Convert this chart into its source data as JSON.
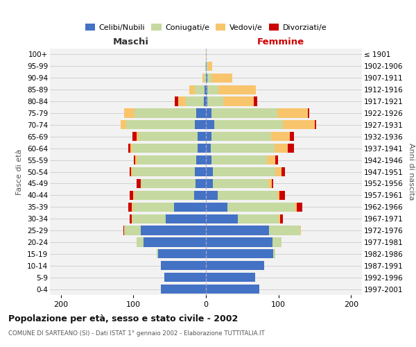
{
  "age_groups": [
    "0-4",
    "5-9",
    "10-14",
    "15-19",
    "20-24",
    "25-29",
    "30-34",
    "35-39",
    "40-44",
    "45-49",
    "50-54",
    "55-59",
    "60-64",
    "65-69",
    "70-74",
    "75-79",
    "80-84",
    "85-89",
    "90-94",
    "95-99",
    "100+"
  ],
  "birth_years": [
    "1997-2001",
    "1992-1996",
    "1987-1991",
    "1982-1986",
    "1977-1981",
    "1972-1976",
    "1967-1971",
    "1962-1966",
    "1957-1961",
    "1952-1956",
    "1947-1951",
    "1942-1946",
    "1937-1941",
    "1932-1936",
    "1927-1931",
    "1922-1926",
    "1917-1921",
    "1912-1916",
    "1907-1911",
    "1902-1906",
    "≤ 1901"
  ],
  "maschi": {
    "celibi": [
      62,
      57,
      62,
      66,
      86,
      90,
      55,
      44,
      16,
      14,
      15,
      13,
      11,
      11,
      15,
      13,
      3,
      2,
      0,
      0,
      0
    ],
    "coniugati": [
      0,
      0,
      0,
      2,
      10,
      22,
      46,
      56,
      82,
      76,
      86,
      82,
      90,
      82,
      95,
      85,
      25,
      13,
      3,
      1,
      0
    ],
    "vedovi": [
      0,
      0,
      0,
      0,
      0,
      1,
      1,
      2,
      2,
      0,
      2,
      2,
      3,
      3,
      8,
      15,
      10,
      8,
      2,
      0,
      0
    ],
    "divorziati": [
      0,
      0,
      0,
      0,
      0,
      1,
      3,
      5,
      5,
      6,
      2,
      2,
      3,
      5,
      0,
      0,
      5,
      0,
      0,
      0,
      0
    ]
  },
  "femmine": {
    "nubili": [
      74,
      68,
      80,
      93,
      92,
      87,
      44,
      30,
      16,
      10,
      10,
      8,
      7,
      8,
      11,
      8,
      2,
      2,
      2,
      1,
      0
    ],
    "coniugate": [
      0,
      0,
      0,
      3,
      12,
      43,
      56,
      92,
      82,
      76,
      86,
      76,
      88,
      82,
      95,
      90,
      22,
      15,
      6,
      2,
      0
    ],
    "vedove": [
      0,
      0,
      0,
      0,
      0,
      1,
      2,
      3,
      3,
      5,
      8,
      12,
      18,
      26,
      44,
      42,
      42,
      52,
      28,
      6,
      1
    ],
    "divorziate": [
      0,
      0,
      0,
      0,
      0,
      0,
      4,
      8,
      8,
      2,
      5,
      3,
      8,
      5,
      2,
      2,
      5,
      0,
      0,
      0,
      0
    ]
  },
  "colors": {
    "celibi": "#4472c4",
    "coniugati": "#c5d9a0",
    "vedovi": "#f8c56d",
    "divorziati": "#cc0000"
  },
  "xlim": 215,
  "title": "Popolazione per età, sesso e stato civile - 2002",
  "subtitle": "COMUNE DI SARTEANO (SI) - Dati ISTAT 1° gennaio 2002 - Elaborazione TUTTITALIA.IT",
  "ylabel": "Fasce di età",
  "ylabel_right": "Anni di nascita",
  "xlabel_left": "Maschi",
  "xlabel_right": "Femmine"
}
